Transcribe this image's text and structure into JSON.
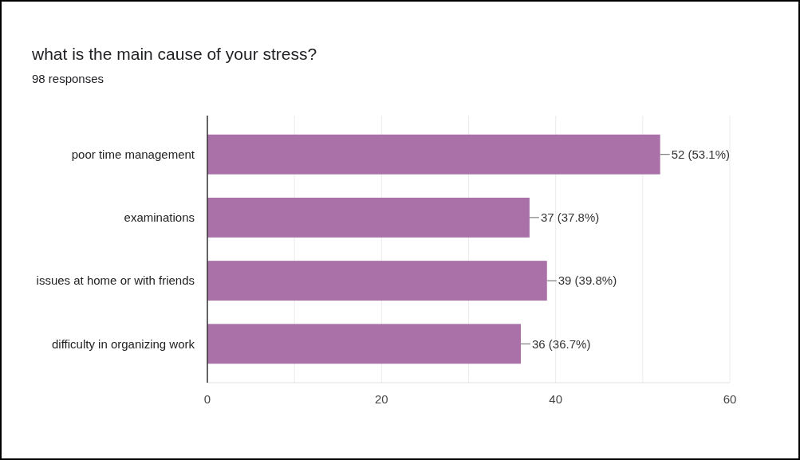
{
  "chart_data": {
    "type": "bar",
    "orientation": "horizontal",
    "title": "what is the main cause of your stress?",
    "subtitle": "98 responses",
    "categories": [
      "poor time management",
      "examinations",
      "issues at home or with friends",
      "difficulty in organizing work"
    ],
    "values": [
      52,
      37,
      39,
      36
    ],
    "color": "#a971a8",
    "value_labels": [
      "52 (53.1%)",
      "37 (37.8%)",
      "39 (39.8%)",
      "36 (36.7%)"
    ],
    "xlim": [
      0,
      60
    ],
    "xticks": [
      0,
      {
        "value": 10,
        "label": null
      },
      20,
      {
        "value": 30,
        "label": null
      },
      40,
      {
        "value": 50,
        "label": null
      },
      60
    ],
    "grid": "x"
  }
}
